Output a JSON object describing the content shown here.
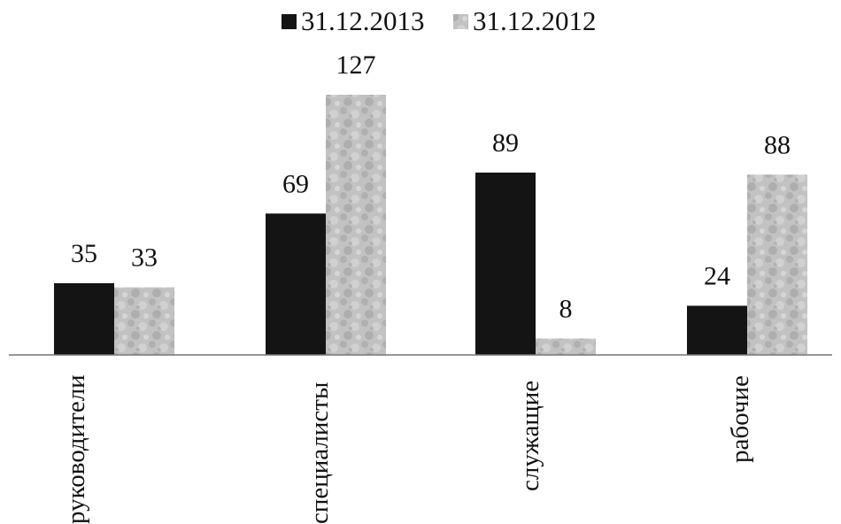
{
  "chart_data": {
    "type": "bar",
    "categories": [
      "руководители",
      "специалисты",
      "служащие",
      "рабочие"
    ],
    "series": [
      {
        "name": "31.12.2013",
        "values": [
          35,
          69,
          89,
          24
        ],
        "color": "#141414",
        "pattern": "solid"
      },
      {
        "name": "31.12.2012",
        "values": [
          33,
          127,
          8,
          88
        ],
        "color": "#b9b9b9",
        "pattern": "mottled-gray"
      }
    ],
    "title": "",
    "xlabel": "",
    "ylabel": "",
    "ylim": [
      0,
      127
    ],
    "grid": false,
    "legend": "top-center",
    "data_labels": true,
    "category_label_orientation": "vertical"
  }
}
